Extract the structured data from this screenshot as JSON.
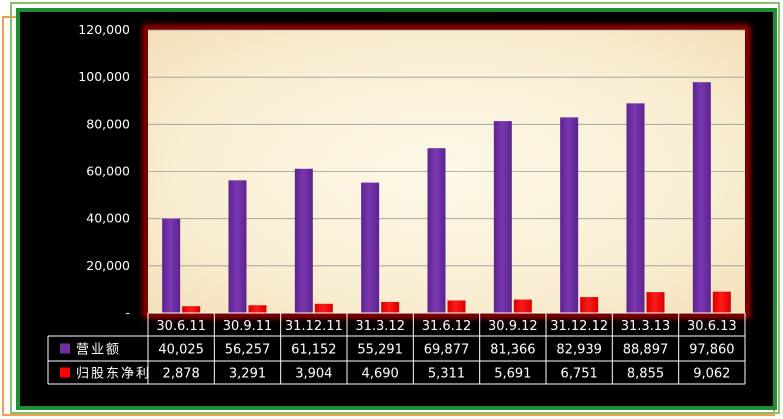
{
  "chart_data": {
    "type": "bar",
    "categories": [
      "30.6.11",
      "30.9.11",
      "31.12.11",
      "31.3.12",
      "31.6.12",
      "30.9.12",
      "31.12.12",
      "31.3.13",
      "30.6.13"
    ],
    "series": [
      {
        "name": "营业额",
        "color": "#7030a0",
        "values": [
          40025,
          56257,
          61152,
          55291,
          69877,
          81366,
          82939,
          88897,
          97860
        ],
        "display_values": [
          "40,025",
          "56,257",
          "61,152",
          "55,291",
          "69,877",
          "81,366",
          "82,939",
          "88,897",
          "97,860"
        ]
      },
      {
        "name": "归股东净利",
        "color": "#ff0000",
        "values": [
          2878,
          3291,
          3904,
          4690,
          5311,
          5691,
          6751,
          8855,
          9062
        ],
        "display_values": [
          "2,878",
          "3,291",
          "3,904",
          "4,690",
          "5,311",
          "5,691",
          "6,751",
          "8,855",
          "9,062"
        ]
      }
    ],
    "ylim": [
      0,
      120000
    ],
    "yticks": [
      0,
      20000,
      40000,
      60000,
      80000,
      100000,
      120000
    ],
    "ytick_labels": [
      "-",
      "20,000",
      "40,000",
      "60,000",
      "80,000",
      "100,000",
      "120,000"
    ],
    "grid": true,
    "data_table": true,
    "plot_background": "#fbf3dc",
    "title": "",
    "xlabel": "",
    "ylabel": ""
  }
}
